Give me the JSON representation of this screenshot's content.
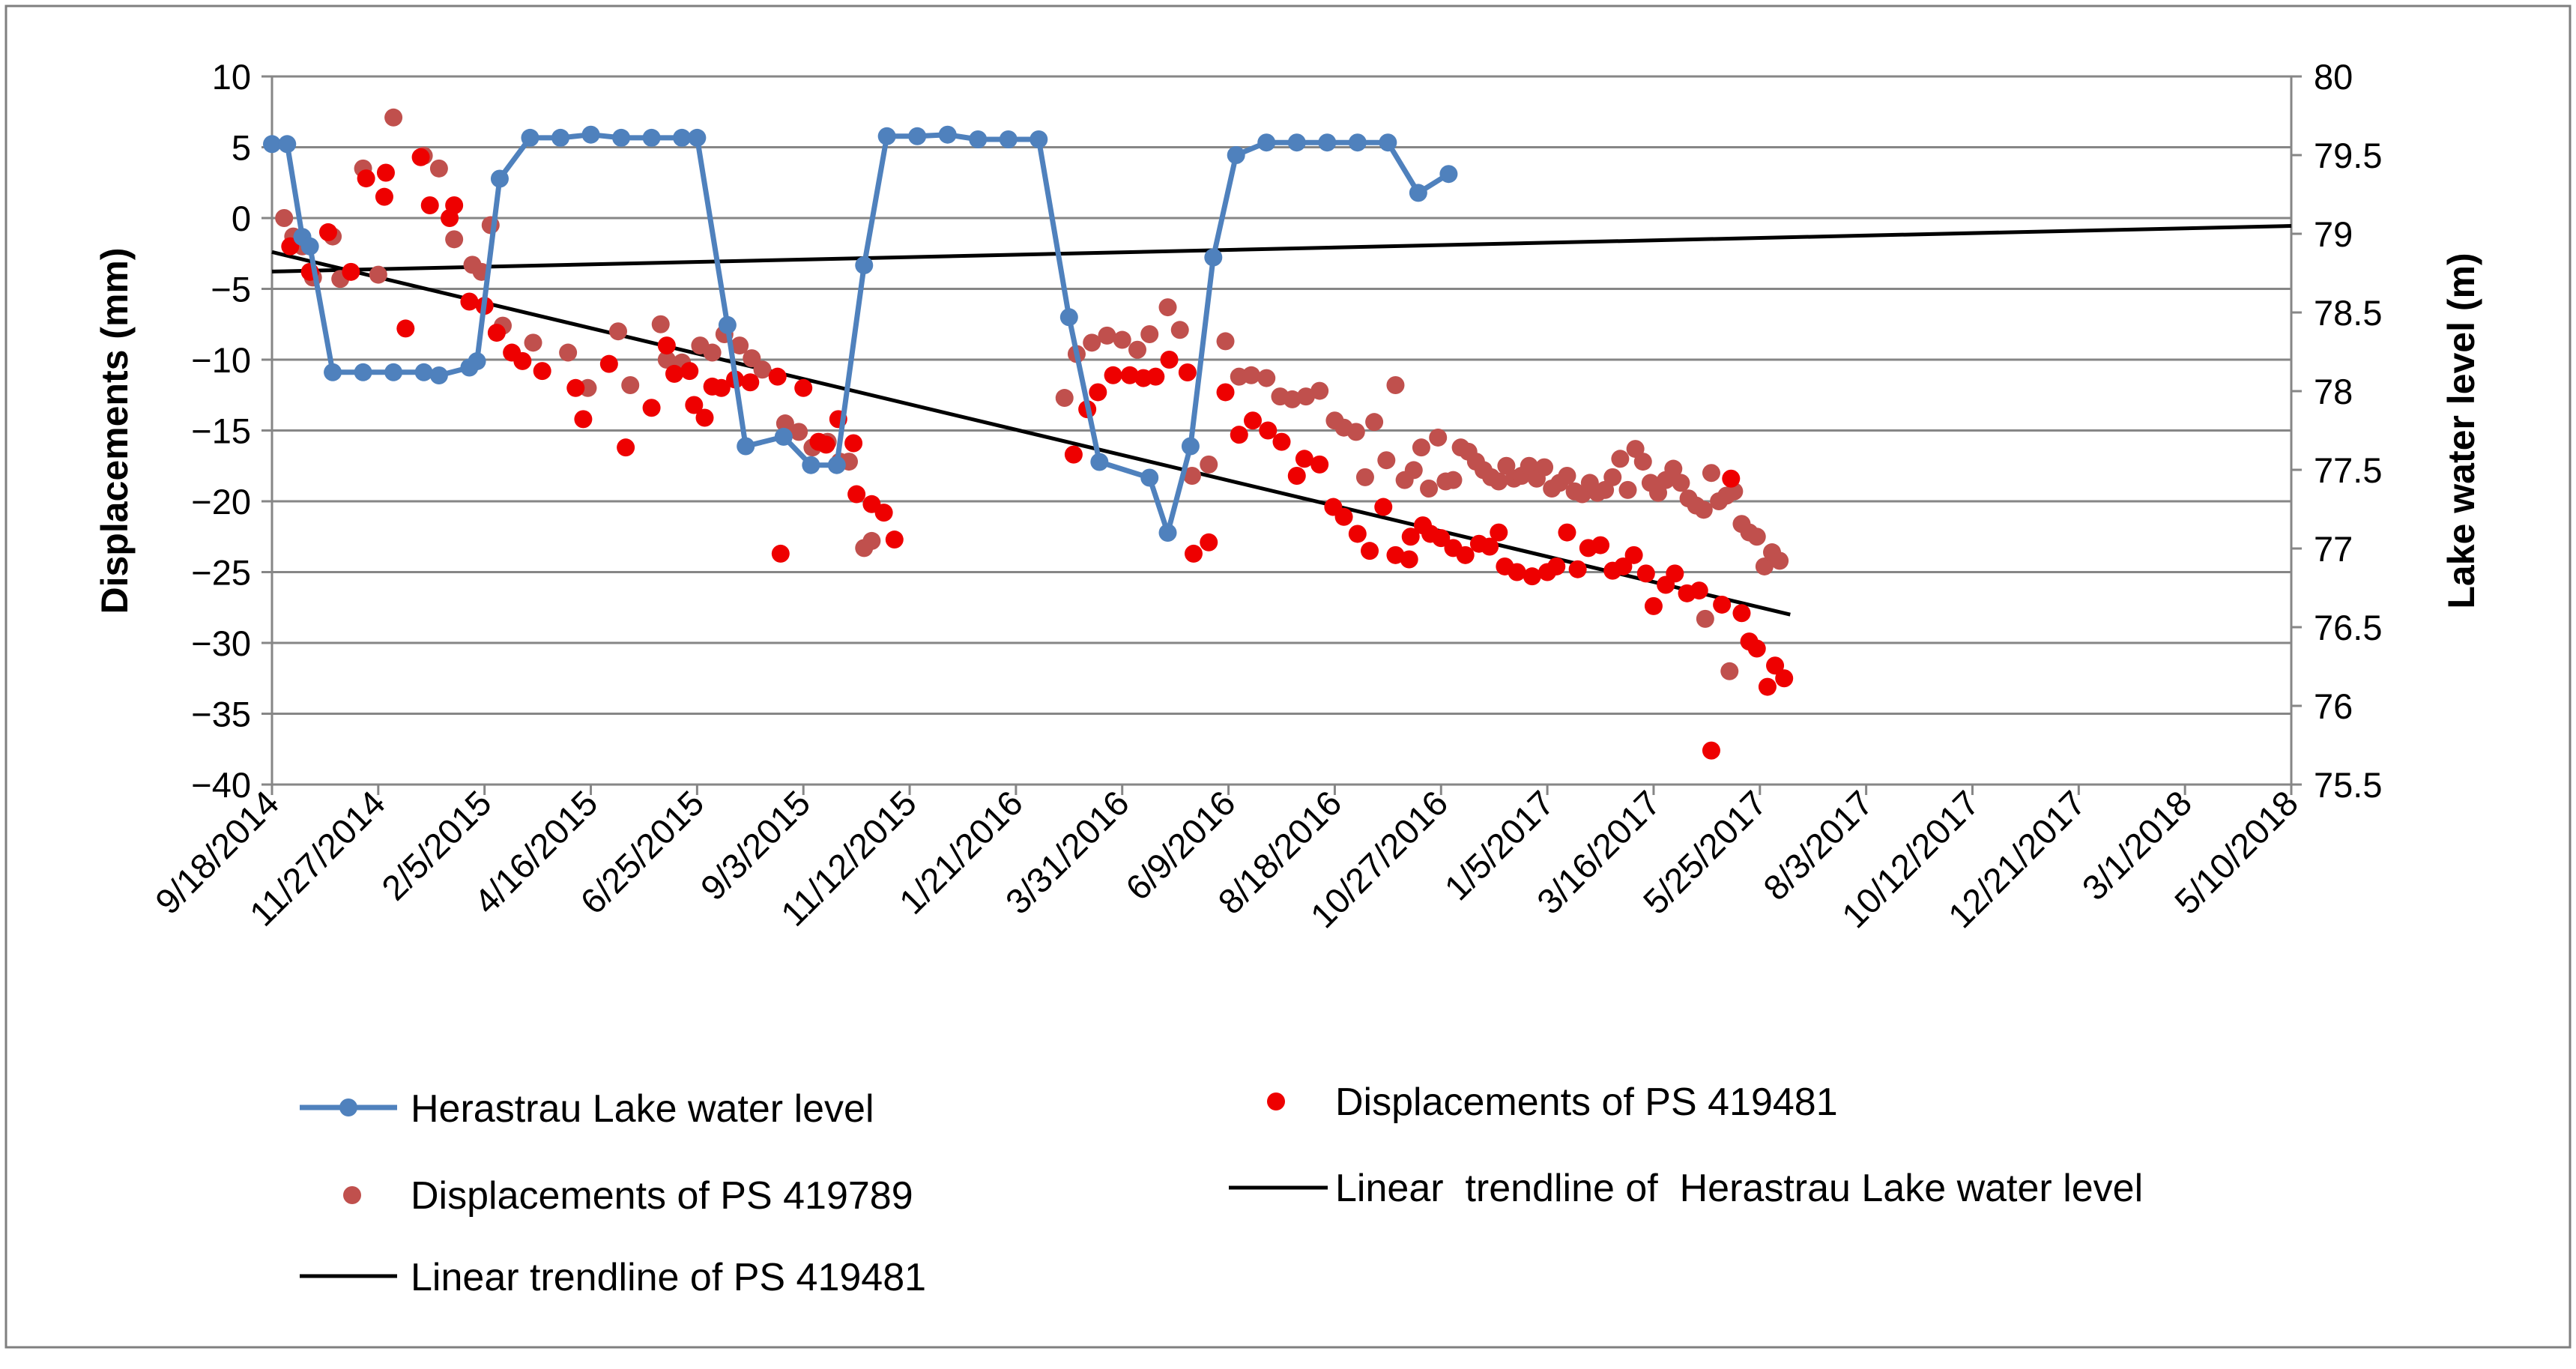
{
  "chart_data": {
    "type": "line+scatter",
    "title": "",
    "ylabel": "Displacements (mm)",
    "y2label": "Lake water level (m)",
    "ylim": [
      -40,
      10
    ],
    "yticks": [
      "10",
      "5",
      "0",
      "−5",
      "−10",
      "−15",
      "−20",
      "−25",
      "−30",
      "−35",
      "−40"
    ],
    "y2lim": [
      75.5,
      80
    ],
    "y2ticks": [
      "80",
      "79.5",
      "79",
      "78.5",
      "78",
      "77.5",
      "77",
      "76.5",
      "76",
      "75.5"
    ],
    "xlim": [
      0,
      1330
    ],
    "xtick_step_days": 70,
    "x_unit": "days since 9/18/2014",
    "xticks": [
      "9/18/2014",
      "11/27/2014",
      "2/5/2015",
      "4/16/2015",
      "6/25/2015",
      "9/3/2015",
      "11/12/2015",
      "1/21/2016",
      "3/31/2016",
      "6/9/2016",
      "8/18/2016",
      "10/27/2016",
      "1/5/2017",
      "3/16/2017",
      "5/25/2017",
      "8/3/2017",
      "10/12/2017",
      "12/21/2017",
      "3/1/2018",
      "5/10/2018"
    ],
    "grid": true,
    "colors": {
      "water": "#4f81bd",
      "ps419481": "#ee0000",
      "ps419789": "#c0504d",
      "trend": "#000000",
      "grid": "#868686",
      "frame": "#7f7f7f"
    },
    "legend": {
      "water": "Herastrau Lake water level",
      "ps419481": "Displacements of PS 419481",
      "ps419789": "Displacements of PS 419789",
      "trend_water": "Linear  trendline of  Herastrau Lake water level",
      "trend_ps": "Linear trendline of PS 419481"
    },
    "series": {
      "water_level": [
        [
          0,
          79.57
        ],
        [
          10,
          79.57
        ],
        [
          20,
          78.98
        ],
        [
          25,
          78.92
        ],
        [
          40,
          78.12
        ],
        [
          60,
          78.12
        ],
        [
          80,
          78.12
        ],
        [
          100,
          78.12
        ],
        [
          110,
          78.1
        ],
        [
          130,
          78.15
        ],
        [
          135,
          78.19
        ],
        [
          150,
          79.35
        ],
        [
          170,
          79.61
        ],
        [
          190,
          79.61
        ],
        [
          210,
          79.63
        ],
        [
          230,
          79.61
        ],
        [
          250,
          79.61
        ],
        [
          270,
          79.61
        ],
        [
          280,
          79.61
        ],
        [
          300,
          78.42
        ],
        [
          312,
          77.65
        ],
        [
          337,
          77.71
        ],
        [
          355,
          77.53
        ],
        [
          372,
          77.53
        ],
        [
          390,
          78.8
        ],
        [
          405,
          79.62
        ],
        [
          425,
          79.62
        ],
        [
          445,
          79.63
        ],
        [
          465,
          79.6
        ],
        [
          485,
          79.6
        ],
        [
          505,
          79.6
        ],
        [
          525,
          78.47
        ],
        [
          545,
          77.55
        ],
        [
          578,
          77.45
        ],
        [
          590,
          77.1
        ],
        [
          605,
          77.65
        ],
        [
          620,
          78.85
        ],
        [
          635,
          79.5
        ],
        [
          655,
          79.58
        ],
        [
          675,
          79.58
        ],
        [
          695,
          79.58
        ],
        [
          715,
          79.58
        ],
        [
          735,
          79.58
        ],
        [
          755,
          79.26
        ],
        [
          775,
          79.38
        ]
      ],
      "ps419481": [
        [
          12,
          -2
        ],
        [
          25,
          -3.8
        ],
        [
          37,
          -1
        ],
        [
          52,
          -3.8
        ],
        [
          62,
          2.8
        ],
        [
          74,
          1.5
        ],
        [
          75,
          3.2
        ],
        [
          88,
          -7.8
        ],
        [
          98,
          4.3
        ],
        [
          104,
          0.9
        ],
        [
          117,
          0
        ],
        [
          120,
          0.9
        ],
        [
          130,
          -5.9
        ],
        [
          140,
          -6.2
        ],
        [
          148,
          -8.1
        ],
        [
          158,
          -9.5
        ],
        [
          165,
          -10.1
        ],
        [
          178,
          -10.8
        ],
        [
          200,
          -12
        ],
        [
          205,
          -14.2
        ],
        [
          222,
          -10.3
        ],
        [
          233,
          -16.2
        ],
        [
          250,
          -13.4
        ],
        [
          260,
          -9
        ],
        [
          265,
          -11
        ],
        [
          275,
          -10.8
        ],
        [
          278,
          -13.2
        ],
        [
          285,
          -14.1
        ],
        [
          290,
          -11.9
        ],
        [
          296,
          -12
        ],
        [
          305,
          -11.4
        ],
        [
          315,
          -11.6
        ],
        [
          333,
          -11.2
        ],
        [
          335,
          -23.7
        ],
        [
          350,
          -12
        ],
        [
          360,
          -15.8
        ],
        [
          365,
          -16
        ],
        [
          373,
          -14.2
        ],
        [
          383,
          -15.9
        ],
        [
          385,
          -19.5
        ],
        [
          395,
          -20.2
        ],
        [
          403,
          -20.8
        ],
        [
          410,
          -22.7
        ],
        [
          528,
          -16.7
        ],
        [
          537,
          -13.5
        ],
        [
          544,
          -12.3
        ],
        [
          554,
          -11.1
        ],
        [
          565,
          -11.1
        ],
        [
          574,
          -11.3
        ],
        [
          582,
          -11.2
        ],
        [
          591,
          -10
        ],
        [
          603,
          -10.9
        ],
        [
          607,
          -23.7
        ],
        [
          617,
          -22.9
        ],
        [
          628,
          -12.3
        ],
        [
          637,
          -15.3
        ],
        [
          646,
          -14.3
        ],
        [
          656,
          -15
        ],
        [
          665,
          -15.8
        ],
        [
          675,
          -18.2
        ],
        [
          680,
          -17
        ],
        [
          690,
          -17.4
        ],
        [
          699,
          -20.4
        ],
        [
          706,
          -21.1
        ],
        [
          715,
          -22.3
        ],
        [
          723,
          -23.5
        ],
        [
          732,
          -20.4
        ],
        [
          740,
          -23.8
        ],
        [
          749,
          -24.1
        ],
        [
          750,
          -22.5
        ],
        [
          758,
          -21.7
        ],
        [
          763,
          -22.3
        ],
        [
          770,
          -22.6
        ],
        [
          778,
          -23.3
        ],
        [
          786,
          -23.8
        ],
        [
          795,
          -23
        ],
        [
          802,
          -23.2
        ],
        [
          808,
          -22.2
        ],
        [
          812,
          -24.6
        ],
        [
          820,
          -25
        ],
        [
          830,
          -25.3
        ],
        [
          840,
          -25
        ],
        [
          846,
          -24.6
        ],
        [
          853,
          -22.2
        ],
        [
          860,
          -24.8
        ],
        [
          867,
          -23.3
        ],
        [
          875,
          -23.1
        ],
        [
          883,
          -24.9
        ],
        [
          890,
          -24.6
        ],
        [
          897,
          -23.8
        ],
        [
          905,
          -25.1
        ],
        [
          910,
          -27.4
        ],
        [
          918,
          -25.9
        ],
        [
          924,
          -25.1
        ],
        [
          932,
          -26.5
        ],
        [
          940,
          -26.3
        ],
        [
          948,
          -37.6
        ],
        [
          955,
          -27.3
        ],
        [
          961,
          -18.4
        ],
        [
          968,
          -27.9
        ],
        [
          973,
          -29.9
        ],
        [
          978,
          -30.4
        ],
        [
          985,
          -33.1
        ],
        [
          990,
          -31.6
        ],
        [
          996,
          -32.5
        ]
      ],
      "ps419789": [
        [
          8,
          0
        ],
        [
          14,
          -1.3
        ],
        [
          20,
          -2
        ],
        [
          27,
          -4.2
        ],
        [
          40,
          -1.3
        ],
        [
          45,
          -4.3
        ],
        [
          60,
          3.5
        ],
        [
          70,
          -4
        ],
        [
          80,
          7.1
        ],
        [
          100,
          4.4
        ],
        [
          110,
          3.5
        ],
        [
          120,
          -1.5
        ],
        [
          132,
          -3.3
        ],
        [
          138,
          -3.8
        ],
        [
          144,
          -0.5
        ],
        [
          152,
          -7.6
        ],
        [
          172,
          -8.8
        ],
        [
          195,
          -9.5
        ],
        [
          208,
          -12
        ],
        [
          228,
          -8
        ],
        [
          236,
          -11.8
        ],
        [
          256,
          -7.5
        ],
        [
          260,
          -10
        ],
        [
          270,
          -10.2
        ],
        [
          282,
          -9
        ],
        [
          290,
          -9.5
        ],
        [
          298,
          -8.2
        ],
        [
          308,
          -9
        ],
        [
          316,
          -9.9
        ],
        [
          323,
          -10.7
        ],
        [
          338,
          -14.5
        ],
        [
          347,
          -15.1
        ],
        [
          356,
          -16.2
        ],
        [
          366,
          -15.8
        ],
        [
          374,
          -17.2
        ],
        [
          380,
          -17.2
        ],
        [
          390,
          -23.3
        ],
        [
          395,
          -22.8
        ],
        [
          522,
          -12.7
        ],
        [
          530,
          -9.6
        ],
        [
          540,
          -8.8
        ],
        [
          550,
          -8.3
        ],
        [
          560,
          -8.6
        ],
        [
          570,
          -9.3
        ],
        [
          578,
          -8.2
        ],
        [
          590,
          -6.3
        ],
        [
          598,
          -7.9
        ],
        [
          606,
          -18.2
        ],
        [
          617,
          -17.4
        ],
        [
          628,
          -8.7
        ],
        [
          637,
          -11.2
        ],
        [
          645,
          -11.1
        ],
        [
          655,
          -11.3
        ],
        [
          664,
          -12.6
        ],
        [
          672,
          -12.8
        ],
        [
          681,
          -12.6
        ],
        [
          690,
          -12.2
        ],
        [
          700,
          -14.3
        ],
        [
          706,
          -14.8
        ],
        [
          714,
          -15.1
        ],
        [
          720,
          -18.3
        ],
        [
          726,
          -14.4
        ],
        [
          734,
          -17.1
        ],
        [
          740,
          -11.8
        ],
        [
          746,
          -18.5
        ],
        [
          752,
          -17.8
        ],
        [
          757,
          -16.2
        ],
        [
          762,
          -19.1
        ],
        [
          768,
          -15.5
        ],
        [
          773,
          -18.6
        ],
        [
          778,
          -18.5
        ],
        [
          783,
          -16.2
        ],
        [
          788,
          -16.5
        ],
        [
          793,
          -17.2
        ],
        [
          798,
          -17.8
        ],
        [
          803,
          -18.3
        ],
        [
          808,
          -18.6
        ],
        [
          813,
          -17.5
        ],
        [
          818,
          -18.4
        ],
        [
          823,
          -18.2
        ],
        [
          828,
          -17.5
        ],
        [
          833,
          -18.4
        ],
        [
          838,
          -17.6
        ],
        [
          843,
          -19.1
        ],
        [
          848,
          -18.7
        ],
        [
          853,
          -18.2
        ],
        [
          858,
          -19.3
        ],
        [
          863,
          -19.5
        ],
        [
          868,
          -18.7
        ],
        [
          873,
          -19.4
        ],
        [
          878,
          -19.2
        ],
        [
          883,
          -18.3
        ],
        [
          888,
          -17
        ],
        [
          893,
          -19.2
        ],
        [
          898,
          -16.3
        ],
        [
          903,
          -17.2
        ],
        [
          908,
          -18.7
        ],
        [
          913,
          -19.4
        ],
        [
          918,
          -18.5
        ],
        [
          923,
          -17.7
        ],
        [
          928,
          -18.7
        ],
        [
          933,
          -19.8
        ],
        [
          938,
          -20.3
        ],
        [
          943,
          -20.6
        ],
        [
          948,
          -18
        ],
        [
          953,
          -20
        ],
        [
          958,
          -19.6
        ],
        [
          963,
          -19.3
        ],
        [
          968,
          -21.6
        ],
        [
          973,
          -22.2
        ],
        [
          978,
          -22.5
        ],
        [
          983,
          -24.6
        ],
        [
          988,
          -23.6
        ],
        [
          993,
          -24.2
        ],
        [
          960,
          -32
        ],
        [
          944,
          -28.3
        ]
      ]
    },
    "trendlines": {
      "ps419481": {
        "from": [
          0,
          -2.4
        ],
        "to": [
          1000,
          -28
        ]
      },
      "water_level": {
        "from": [
          0,
          78.76
        ],
        "to": [
          1330,
          79.05
        ]
      }
    }
  }
}
